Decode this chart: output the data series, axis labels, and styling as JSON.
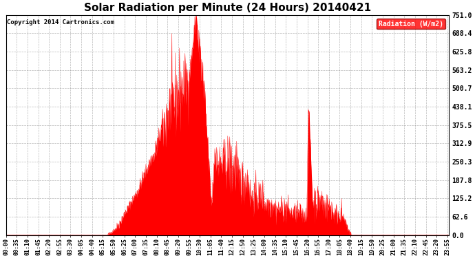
{
  "title": "Solar Radiation per Minute (24 Hours) 20140421",
  "copyright": "Copyright 2014 Cartronics.com",
  "legend_label": "Radiation (W/m2)",
  "bg_color": "#ffffff",
  "plot_bg_color": "#ffffff",
  "fill_color": "#ff0000",
  "line_color": "#ff0000",
  "dashed_line_color": "#ff0000",
  "grid_color": "#888888",
  "ylim": [
    0,
    751.0
  ],
  "yticks": [
    0.0,
    62.6,
    125.2,
    187.8,
    250.3,
    312.9,
    375.5,
    438.1,
    500.7,
    563.2,
    625.8,
    688.4,
    751.0
  ],
  "title_fontsize": 11,
  "legend_fontsize": 7,
  "tick_fontsize": 6,
  "copyright_fontsize": 6.5
}
